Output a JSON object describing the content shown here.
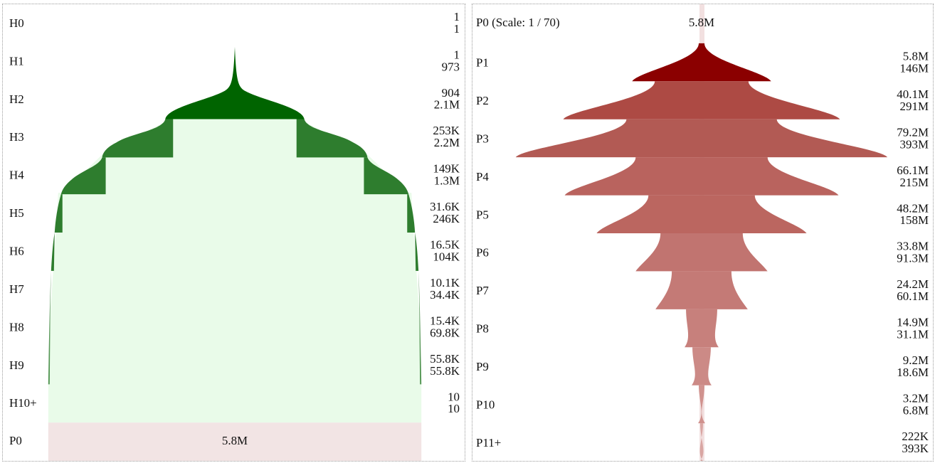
{
  "heap_panel": {
    "rows": [
      {
        "label": "H0",
        "top": "1",
        "bottom": "1"
      },
      {
        "label": "H1",
        "top": "1",
        "bottom": "973"
      },
      {
        "label": "H2",
        "top": "904",
        "bottom": "2.1M"
      },
      {
        "label": "H3",
        "top": "253K",
        "bottom": "2.2M"
      },
      {
        "label": "H4",
        "top": "149K",
        "bottom": "1.3M"
      },
      {
        "label": "H5",
        "top": "31.6K",
        "bottom": "246K"
      },
      {
        "label": "H6",
        "top": "16.5K",
        "bottom": "104K"
      },
      {
        "label": "H7",
        "top": "10.1K",
        "bottom": "34.4K"
      },
      {
        "label": "H8",
        "top": "15.4K",
        "bottom": "69.8K"
      },
      {
        "label": "H9",
        "top": "55.8K",
        "bottom": "55.8K"
      },
      {
        "label": "H10+",
        "top": "10",
        "bottom": "10"
      }
    ],
    "footer": {
      "label": "P0",
      "value": "5.8M"
    },
    "colors": {
      "dark": "#006400",
      "mid": "#2e7d2e",
      "fill": "#e9fbe9",
      "footer": "#f2e4e4"
    }
  },
  "path_panel": {
    "header": {
      "label": "P0 (Scale: 1 / 70)",
      "value": "5.8M"
    },
    "rows": [
      {
        "label": "P1",
        "top": "5.8M",
        "bottom": "146M"
      },
      {
        "label": "P2",
        "top": "40.1M",
        "bottom": "291M"
      },
      {
        "label": "P3",
        "top": "79.2M",
        "bottom": "393M"
      },
      {
        "label": "P4",
        "top": "66.1M",
        "bottom": "215M"
      },
      {
        "label": "P5",
        "top": "48.2M",
        "bottom": "158M"
      },
      {
        "label": "P6",
        "top": "33.8M",
        "bottom": "91.3M"
      },
      {
        "label": "P7",
        "top": "24.2M",
        "bottom": "60.1M"
      },
      {
        "label": "P8",
        "top": "14.9M",
        "bottom": "31.1M"
      },
      {
        "label": "P9",
        "top": "9.2M",
        "bottom": "18.6M"
      },
      {
        "label": "P10",
        "top": "3.2M",
        "bottom": "6.8M"
      },
      {
        "label": "P11+",
        "top": "222K",
        "bottom": "393K"
      }
    ],
    "colors": [
      "#8b0000",
      "#ad4a44",
      "#b25a54",
      "#b9635e",
      "#bb6660",
      "#c17470",
      "#c47a76",
      "#c7807c",
      "#cc8a86",
      "#d0928e",
      "#d9a6a3"
    ],
    "stem_color": "#f2e0e0"
  }
}
